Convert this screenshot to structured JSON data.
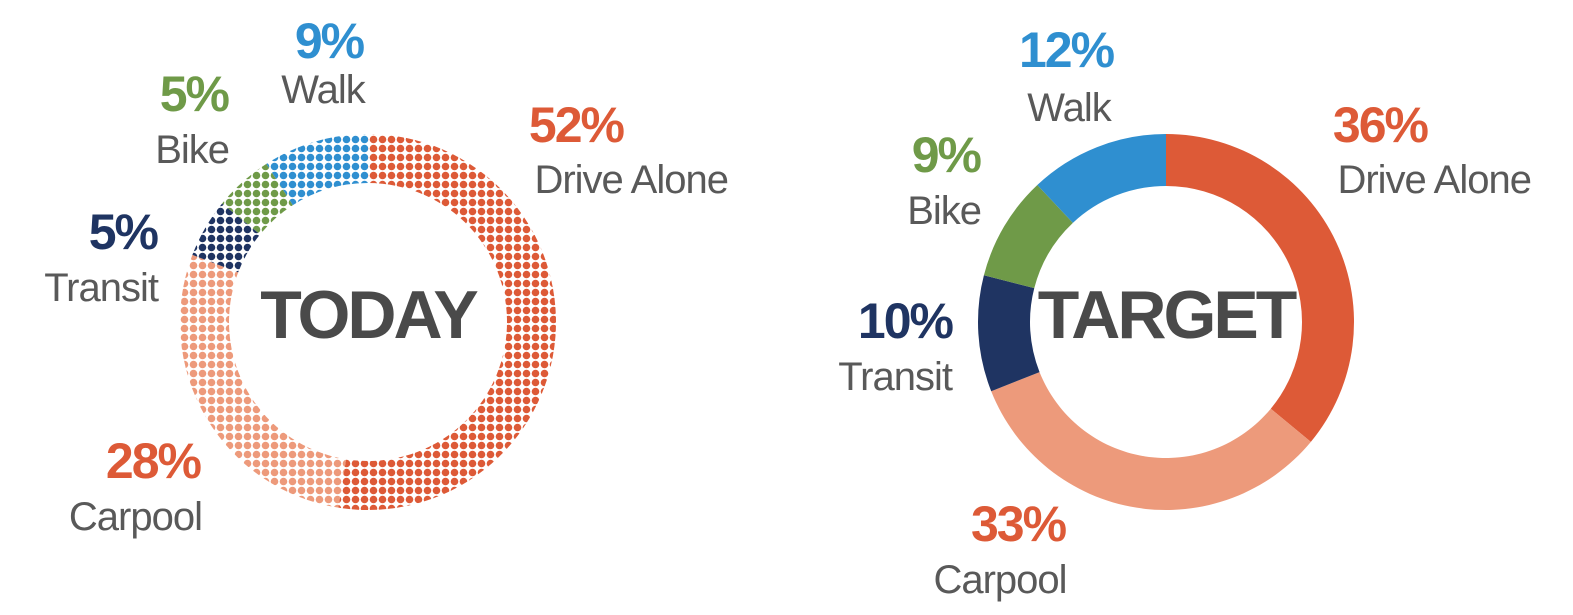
{
  "chart_data": [
    {
      "type": "pie",
      "variant": "donut",
      "title": "TODAY",
      "fill_style": "dotted",
      "categories": [
        "Drive Alone",
        "Carpool",
        "Transit",
        "Bike",
        "Walk"
      ],
      "values": [
        52,
        28,
        5,
        5,
        9
      ],
      "value_labels": [
        "52%",
        "28%",
        "5%",
        "5%",
        "9%"
      ],
      "colors": [
        "#dd5a37",
        "#ed9a7b",
        "#1f3462",
        "#6f9a48",
        "#2f8fd0"
      ],
      "label_colors": [
        "#dd5a37",
        "#dd5a37",
        "#1f3462",
        "#6f9a48",
        "#2f8fd0"
      ]
    },
    {
      "type": "pie",
      "variant": "donut",
      "title": "TARGET",
      "fill_style": "solid",
      "categories": [
        "Drive Alone",
        "Carpool",
        "Transit",
        "Bike",
        "Walk"
      ],
      "values": [
        36,
        33,
        10,
        9,
        12
      ],
      "value_labels": [
        "36%",
        "33%",
        "10%",
        "9%",
        "12%"
      ],
      "colors": [
        "#dd5a37",
        "#ed9a7b",
        "#1f3462",
        "#6f9a48",
        "#2f8fd0"
      ],
      "label_colors": [
        "#dd5a37",
        "#dd5a37",
        "#1f3462",
        "#6f9a48",
        "#2f8fd0"
      ]
    }
  ]
}
